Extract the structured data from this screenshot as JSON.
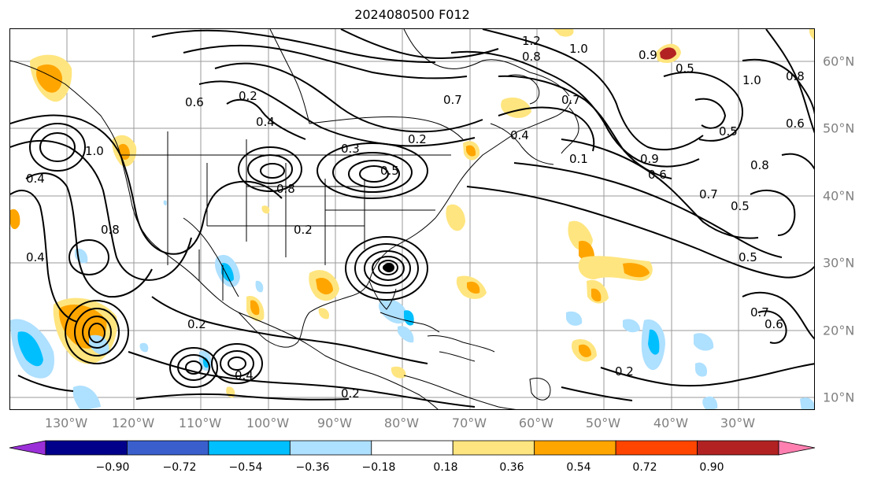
{
  "title": "2024080500 F012",
  "map": {
    "type": "forecast-field-map",
    "projection": "lat-lon",
    "grid": true,
    "lon_ticks": [
      "130°W",
      "120°W",
      "110°W",
      "100°W",
      "90°W",
      "80°W",
      "70°W",
      "60°W",
      "50°W",
      "40°W",
      "30°W"
    ],
    "lat_ticks": [
      "60°N",
      "50°N",
      "40°N",
      "30°N",
      "20°N",
      "10°N"
    ],
    "contour_labels": [
      "0.2",
      "0.4",
      "0.5",
      "0.6",
      "0.7",
      "0.8",
      "0.9",
      "1.0",
      "0.3",
      "0.1",
      "1.2"
    ]
  },
  "colorbar": {
    "ticks": [
      "−0.90",
      "−0.72",
      "−0.54",
      "−0.36",
      "−0.18",
      "0.18",
      "0.36",
      "0.54",
      "0.72",
      "0.90"
    ],
    "colors": [
      "#9b30d9",
      "#00008b",
      "#3a5fcd",
      "#00bfff",
      "#aee0ff",
      "#ffffff",
      "#ffe57f",
      "#ffa500",
      "#ff4500",
      "#b22222",
      "#ff7fb0"
    ],
    "extend": "both"
  }
}
